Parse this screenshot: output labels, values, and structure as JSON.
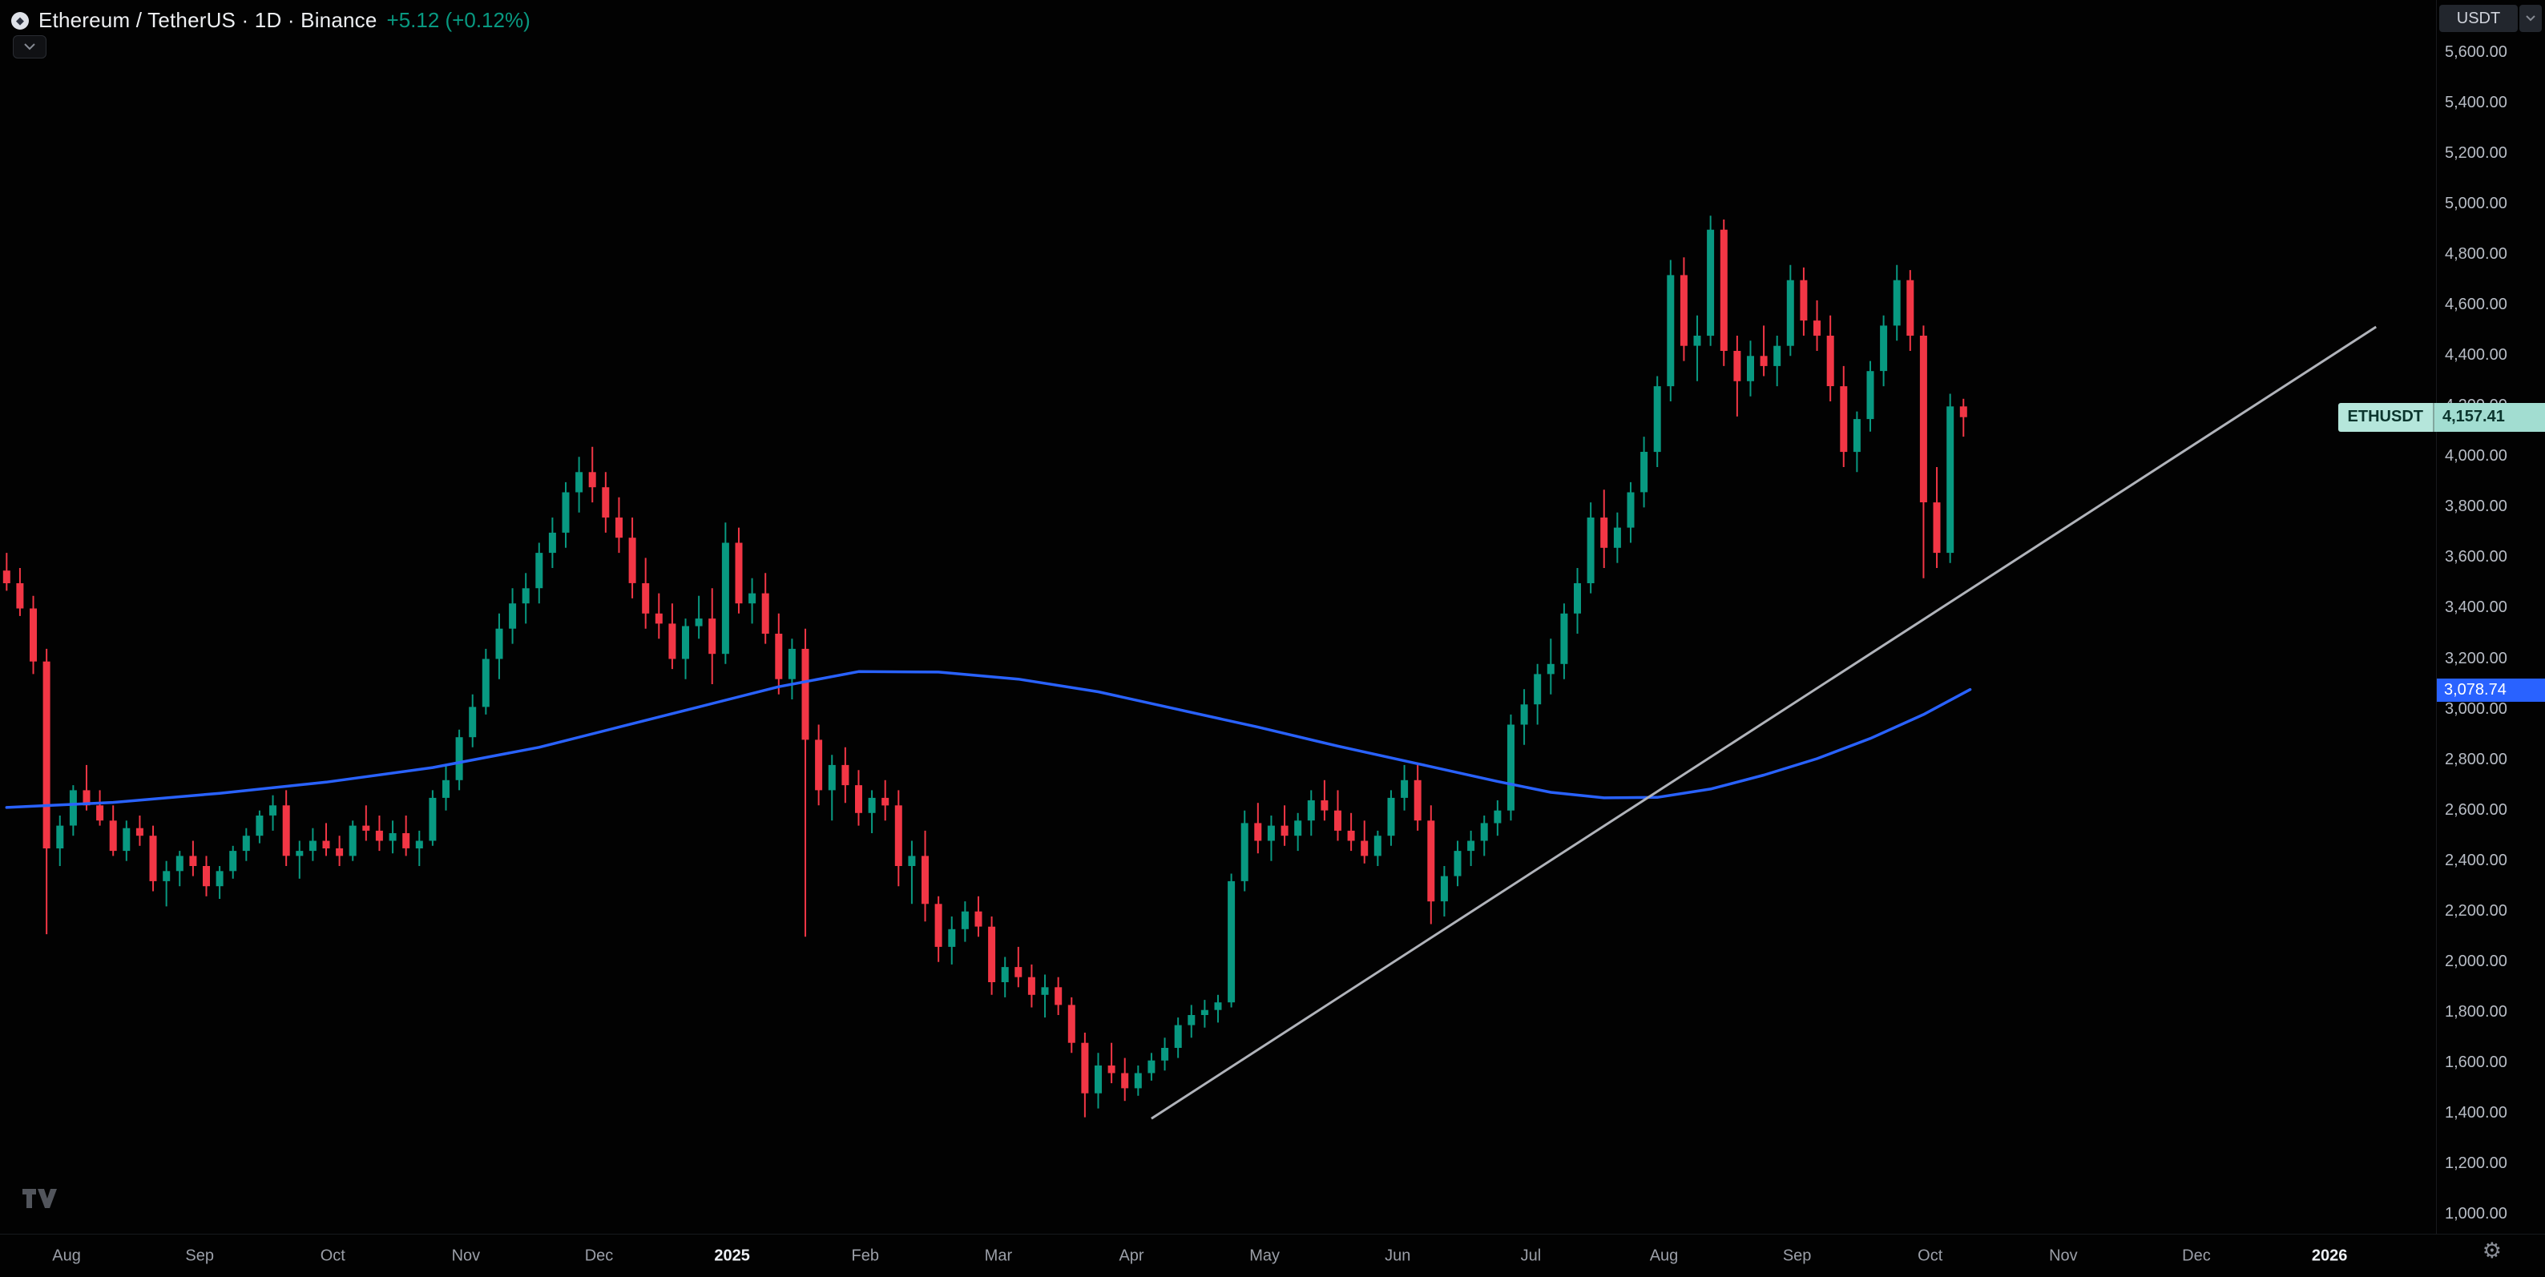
{
  "header": {
    "symbol_title": "Ethereum / TetherUS · 1D · Binance",
    "change": "+5.12 (+0.12%)",
    "currency": "USDT",
    "logo_glyph": "◆"
  },
  "labels": {
    "symbol_badge": "ETHUSDT",
    "last_price": "4,157.41",
    "ma_value": "3,078.74",
    "gear_glyph": "⚙"
  },
  "colors": {
    "up": "#089981",
    "down": "#f23645",
    "ma": "#2962ff",
    "trendline": "#b0b3ba",
    "change_text": "#089981"
  },
  "chart_data": {
    "type": "candlestick",
    "title": "Ethereum / TetherUS 1D Binance",
    "symbol": "ETHUSDT",
    "interval": "1D",
    "legend_position": "none",
    "grid": false,
    "ylim": [
      1000,
      5600
    ],
    "last_price": 4157.41,
    "ma_last_value": 3078.74,
    "y_axis": {
      "unit": "USDT",
      "ticks": [
        5600,
        5400,
        5200,
        5000,
        4800,
        4600,
        4400,
        4200,
        4000,
        3800,
        3600,
        3400,
        3200,
        3000,
        2800,
        2600,
        2400,
        2200,
        2000,
        1800,
        1600,
        1400,
        1200,
        1000
      ]
    },
    "x_axis": {
      "labels": [
        {
          "text": "Aug",
          "slot": 4.5,
          "year": false
        },
        {
          "text": "Sep",
          "slot": 14.5,
          "year": false
        },
        {
          "text": "Oct",
          "slot": 24.5,
          "year": false
        },
        {
          "text": "Nov",
          "slot": 34.5,
          "year": false
        },
        {
          "text": "Dec",
          "slot": 44.5,
          "year": false
        },
        {
          "text": "2025",
          "slot": 54.5,
          "year": true
        },
        {
          "text": "Feb",
          "slot": 64.5,
          "year": false
        },
        {
          "text": "Mar",
          "slot": 74.5,
          "year": false
        },
        {
          "text": "Apr",
          "slot": 84.5,
          "year": false
        },
        {
          "text": "May",
          "slot": 94.5,
          "year": false
        },
        {
          "text": "Jun",
          "slot": 104.5,
          "year": false
        },
        {
          "text": "Jul",
          "slot": 114.5,
          "year": false
        },
        {
          "text": "Aug",
          "slot": 124.5,
          "year": false
        },
        {
          "text": "Sep",
          "slot": 134.5,
          "year": false
        },
        {
          "text": "Oct",
          "slot": 144.5,
          "year": false
        },
        {
          "text": "Nov",
          "slot": 154.5,
          "year": false
        },
        {
          "text": "Dec",
          "slot": 164.5,
          "year": false
        },
        {
          "text": "2026",
          "slot": 174.5,
          "year": true
        }
      ]
    },
    "series": {
      "candles_ohlc": [
        [
          3550,
          3620,
          3470,
          3500
        ],
        [
          3500,
          3560,
          3370,
          3400
        ],
        [
          3400,
          3450,
          3140,
          3190
        ],
        [
          3190,
          3240,
          2110,
          2450
        ],
        [
          2450,
          2580,
          2380,
          2540
        ],
        [
          2540,
          2700,
          2500,
          2680
        ],
        [
          2680,
          2780,
          2600,
          2620
        ],
        [
          2620,
          2680,
          2540,
          2560
        ],
        [
          2560,
          2620,
          2420,
          2440
        ],
        [
          2440,
          2560,
          2400,
          2530
        ],
        [
          2530,
          2580,
          2460,
          2500
        ],
        [
          2500,
          2540,
          2280,
          2320
        ],
        [
          2320,
          2400,
          2220,
          2360
        ],
        [
          2360,
          2440,
          2300,
          2420
        ],
        [
          2420,
          2480,
          2340,
          2380
        ],
        [
          2380,
          2420,
          2260,
          2300
        ],
        [
          2300,
          2380,
          2250,
          2360
        ],
        [
          2360,
          2460,
          2330,
          2440
        ],
        [
          2440,
          2530,
          2400,
          2500
        ],
        [
          2500,
          2600,
          2470,
          2580
        ],
        [
          2580,
          2660,
          2520,
          2620
        ],
        [
          2620,
          2680,
          2380,
          2420
        ],
        [
          2420,
          2480,
          2330,
          2440
        ],
        [
          2440,
          2530,
          2400,
          2480
        ],
        [
          2480,
          2550,
          2420,
          2450
        ],
        [
          2450,
          2500,
          2380,
          2420
        ],
        [
          2420,
          2560,
          2400,
          2540
        ],
        [
          2540,
          2620,
          2480,
          2520
        ],
        [
          2520,
          2580,
          2440,
          2480
        ],
        [
          2480,
          2560,
          2430,
          2510
        ],
        [
          2510,
          2580,
          2420,
          2450
        ],
        [
          2450,
          2520,
          2380,
          2480
        ],
        [
          2480,
          2680,
          2460,
          2650
        ],
        [
          2650,
          2780,
          2600,
          2720
        ],
        [
          2720,
          2920,
          2680,
          2890
        ],
        [
          2890,
          3060,
          2850,
          3010
        ],
        [
          3010,
          3240,
          2980,
          3200
        ],
        [
          3200,
          3380,
          3120,
          3320
        ],
        [
          3320,
          3480,
          3260,
          3420
        ],
        [
          3420,
          3540,
          3340,
          3480
        ],
        [
          3480,
          3660,
          3420,
          3620
        ],
        [
          3620,
          3760,
          3560,
          3700
        ],
        [
          3700,
          3900,
          3640,
          3860
        ],
        [
          3860,
          4000,
          3780,
          3940
        ],
        [
          3940,
          4040,
          3820,
          3880
        ],
        [
          3880,
          3940,
          3700,
          3760
        ],
        [
          3760,
          3840,
          3620,
          3680
        ],
        [
          3680,
          3760,
          3440,
          3500
        ],
        [
          3500,
          3600,
          3320,
          3380
        ],
        [
          3380,
          3460,
          3280,
          3340
        ],
        [
          3340,
          3420,
          3160,
          3200
        ],
        [
          3200,
          3360,
          3120,
          3330
        ],
        [
          3330,
          3450,
          3280,
          3360
        ],
        [
          3360,
          3480,
          3100,
          3220
        ],
        [
          3220,
          3740,
          3180,
          3660
        ],
        [
          3660,
          3720,
          3380,
          3420
        ],
        [
          3420,
          3520,
          3340,
          3460
        ],
        [
          3460,
          3540,
          3260,
          3300
        ],
        [
          3300,
          3380,
          3060,
          3120
        ],
        [
          3120,
          3280,
          3040,
          3240
        ],
        [
          3240,
          3320,
          2100,
          2880
        ],
        [
          2880,
          2940,
          2620,
          2680
        ],
        [
          2680,
          2820,
          2560,
          2780
        ],
        [
          2780,
          2850,
          2630,
          2700
        ],
        [
          2700,
          2760,
          2540,
          2590
        ],
        [
          2590,
          2680,
          2510,
          2650
        ],
        [
          2650,
          2720,
          2560,
          2620
        ],
        [
          2620,
          2680,
          2300,
          2380
        ],
        [
          2380,
          2480,
          2230,
          2420
        ],
        [
          2420,
          2520,
          2160,
          2230
        ],
        [
          2230,
          2260,
          2000,
          2060
        ],
        [
          2060,
          2180,
          1990,
          2130
        ],
        [
          2130,
          2240,
          2080,
          2200
        ],
        [
          2200,
          2260,
          2100,
          2140
        ],
        [
          2140,
          2180,
          1870,
          1920
        ],
        [
          1920,
          2020,
          1860,
          1980
        ],
        [
          1980,
          2060,
          1900,
          1940
        ],
        [
          1940,
          1990,
          1820,
          1870
        ],
        [
          1870,
          1950,
          1780,
          1900
        ],
        [
          1900,
          1940,
          1790,
          1830
        ],
        [
          1830,
          1860,
          1640,
          1680
        ],
        [
          1680,
          1720,
          1385,
          1480
        ],
        [
          1480,
          1640,
          1420,
          1590
        ],
        [
          1590,
          1680,
          1520,
          1560
        ],
        [
          1560,
          1620,
          1450,
          1500
        ],
        [
          1500,
          1590,
          1470,
          1560
        ],
        [
          1560,
          1640,
          1530,
          1610
        ],
        [
          1610,
          1700,
          1570,
          1660
        ],
        [
          1660,
          1780,
          1620,
          1750
        ],
        [
          1750,
          1830,
          1700,
          1790
        ],
        [
          1790,
          1850,
          1740,
          1810
        ],
        [
          1810,
          1870,
          1760,
          1840
        ],
        [
          1840,
          2350,
          1820,
          2320
        ],
        [
          2320,
          2600,
          2280,
          2550
        ],
        [
          2550,
          2630,
          2430,
          2480
        ],
        [
          2480,
          2580,
          2400,
          2540
        ],
        [
          2540,
          2620,
          2460,
          2500
        ],
        [
          2500,
          2590,
          2440,
          2560
        ],
        [
          2560,
          2680,
          2500,
          2640
        ],
        [
          2640,
          2720,
          2560,
          2600
        ],
        [
          2600,
          2680,
          2480,
          2520
        ],
        [
          2520,
          2590,
          2440,
          2480
        ],
        [
          2480,
          2560,
          2390,
          2420
        ],
        [
          2420,
          2520,
          2380,
          2500
        ],
        [
          2500,
          2680,
          2460,
          2650
        ],
        [
          2650,
          2780,
          2600,
          2720
        ],
        [
          2720,
          2780,
          2520,
          2560
        ],
        [
          2560,
          2620,
          2150,
          2240
        ],
        [
          2240,
          2380,
          2180,
          2340
        ],
        [
          2340,
          2480,
          2300,
          2440
        ],
        [
          2440,
          2520,
          2380,
          2480
        ],
        [
          2480,
          2580,
          2420,
          2550
        ],
        [
          2550,
          2640,
          2500,
          2600
        ],
        [
          2600,
          2980,
          2560,
          2940
        ],
        [
          2940,
          3080,
          2860,
          3020
        ],
        [
          3020,
          3180,
          2940,
          3140
        ],
        [
          3140,
          3280,
          3060,
          3180
        ],
        [
          3180,
          3420,
          3120,
          3380
        ],
        [
          3380,
          3560,
          3300,
          3500
        ],
        [
          3500,
          3820,
          3460,
          3760
        ],
        [
          3760,
          3870,
          3560,
          3640
        ],
        [
          3640,
          3780,
          3580,
          3720
        ],
        [
          3720,
          3900,
          3660,
          3860
        ],
        [
          3860,
          4080,
          3800,
          4020
        ],
        [
          4020,
          4320,
          3960,
          4280
        ],
        [
          4280,
          4780,
          4220,
          4720
        ],
        [
          4720,
          4790,
          4380,
          4440
        ],
        [
          4440,
          4560,
          4300,
          4480
        ],
        [
          4480,
          4955,
          4440,
          4900
        ],
        [
          4900,
          4940,
          4360,
          4420
        ],
        [
          4420,
          4480,
          4160,
          4300
        ],
        [
          4300,
          4460,
          4240,
          4400
        ],
        [
          4400,
          4520,
          4320,
          4360
        ],
        [
          4360,
          4480,
          4280,
          4440
        ],
        [
          4440,
          4760,
          4400,
          4700
        ],
        [
          4700,
          4750,
          4480,
          4540
        ],
        [
          4540,
          4620,
          4420,
          4480
        ],
        [
          4480,
          4560,
          4220,
          4280
        ],
        [
          4280,
          4360,
          3960,
          4020
        ],
        [
          4020,
          4180,
          3940,
          4150
        ],
        [
          4150,
          4380,
          4100,
          4340
        ],
        [
          4340,
          4560,
          4280,
          4520
        ],
        [
          4520,
          4760,
          4460,
          4700
        ],
        [
          4700,
          4740,
          4420,
          4480
        ],
        [
          4480,
          4520,
          3520,
          3820
        ],
        [
          3820,
          3960,
          3560,
          3620
        ],
        [
          3620,
          4250,
          3580,
          4200
        ],
        [
          4200,
          4230,
          4080,
          4157.41
        ]
      ],
      "ma": {
        "name": "Moving Average",
        "color": "#2962ff",
        "points": [
          [
            0,
            2612
          ],
          [
            8,
            2632
          ],
          [
            16,
            2668
          ],
          [
            24,
            2712
          ],
          [
            32,
            2770
          ],
          [
            40,
            2850
          ],
          [
            46,
            2930
          ],
          [
            52,
            3010
          ],
          [
            58,
            3090
          ],
          [
            64,
            3150
          ],
          [
            70,
            3148
          ],
          [
            76,
            3120
          ],
          [
            82,
            3070
          ],
          [
            88,
            3000
          ],
          [
            94,
            2930
          ],
          [
            100,
            2855
          ],
          [
            106,
            2785
          ],
          [
            112,
            2715
          ],
          [
            116,
            2672
          ],
          [
            120,
            2650
          ],
          [
            124,
            2652
          ],
          [
            128,
            2685
          ],
          [
            132,
            2740
          ],
          [
            136,
            2805
          ],
          [
            140,
            2885
          ],
          [
            144,
            2980
          ],
          [
            147.5,
            3078.74
          ]
        ]
      },
      "trendline": {
        "name": "Trendline",
        "color": "#b0b3ba",
        "from_slot": 86,
        "from_price": 1380,
        "to_slot": 178,
        "to_price": 4515
      }
    }
  }
}
